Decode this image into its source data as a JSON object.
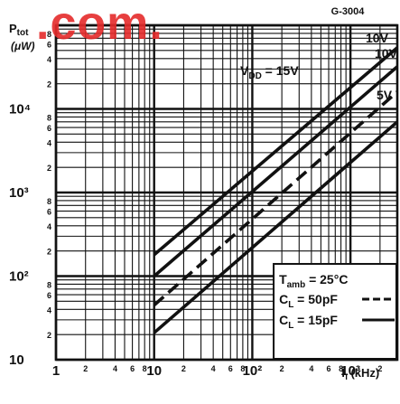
{
  "figure_code": "G-3004",
  "watermark": ".com.",
  "y_unit_label": [
    "Ptot",
    "(μW)"
  ],
  "x_axis_label": "fI (kHz)",
  "chart_data": {
    "type": "line",
    "x_scale": "log",
    "y_scale": "log",
    "xlim": [
      1,
      3000
    ],
    "ylim": [
      10,
      100000
    ],
    "grid": true,
    "x_decade_labels": [
      "1",
      "10",
      "10²",
      "10³"
    ],
    "x_minor_labels": [
      "2",
      "4",
      "6",
      "8"
    ],
    "y_decade_labels": [
      "10",
      "10²",
      "10³",
      "10⁴"
    ],
    "y_minor_labels": [
      "2",
      "4",
      "6",
      "8"
    ],
    "series": [
      {
        "name": "VDD = 15V",
        "style": "solid",
        "label_pos": "top",
        "x": [
          10,
          3000
        ],
        "y": [
          180,
          54000
        ]
      },
      {
        "name": "10V",
        "style": "solid",
        "x": [
          10,
          3000
        ],
        "y": [
          100,
          32000
        ]
      },
      {
        "name": "10V",
        "style": "dashed",
        "x": [
          10,
          3000
        ],
        "y": [
          45,
          16000
        ]
      },
      {
        "name": "5V",
        "style": "solid",
        "x": [
          10,
          3000
        ],
        "y": [
          21,
          7000
        ]
      }
    ],
    "annotation": {
      "tamb": "Tamb = 25°C",
      "cl50": "CL = 50pF",
      "cl15": "CL = 15pF",
      "placement": "bottom-right"
    },
    "series_labels": [
      "VDD = 15V",
      "10V",
      "10V",
      "5V"
    ]
  }
}
